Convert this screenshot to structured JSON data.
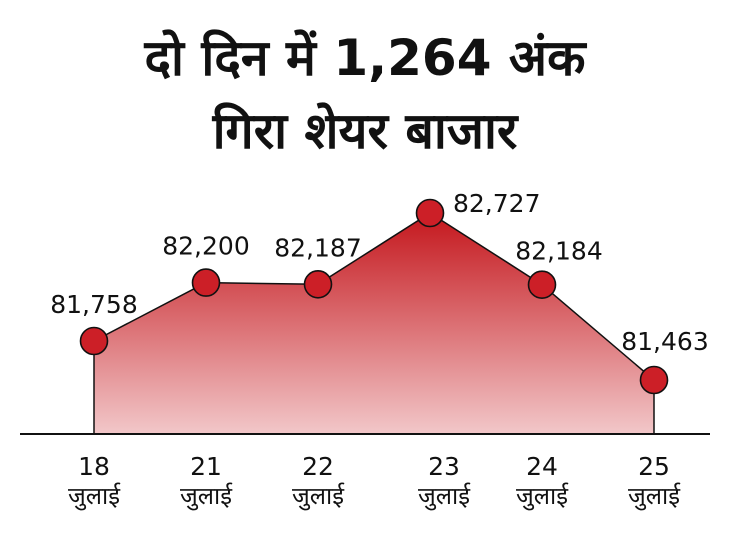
{
  "title_lines": [
    "दो दिन में 1,264 अंक",
    "गिरा शेयर बाजार"
  ],
  "colors": {
    "area_top": "#c4161c",
    "area_bottom": "#f2c7c9",
    "marker": "#cc1f27",
    "stroke": "#111111"
  },
  "chart_data": {
    "type": "area",
    "title": "दो दिन में 1,264 अंक गिरा शेयर बाजार",
    "xlabel": "",
    "ylabel": "",
    "grid": false,
    "categories": [
      {
        "day": "18",
        "month": "जुलाई"
      },
      {
        "day": "21",
        "month": "जुलाई"
      },
      {
        "day": "22",
        "month": "जुलाई"
      },
      {
        "day": "23",
        "month": "जुलाई"
      },
      {
        "day": "24",
        "month": "जुलाई"
      },
      {
        "day": "25",
        "month": "जुलाई"
      }
    ],
    "values": [
      81758,
      82200,
      82187,
      82727,
      82184,
      81463
    ],
    "value_labels": [
      "81,758",
      "82,200",
      "82,187",
      "82,727",
      "82,184",
      "81,463"
    ]
  }
}
